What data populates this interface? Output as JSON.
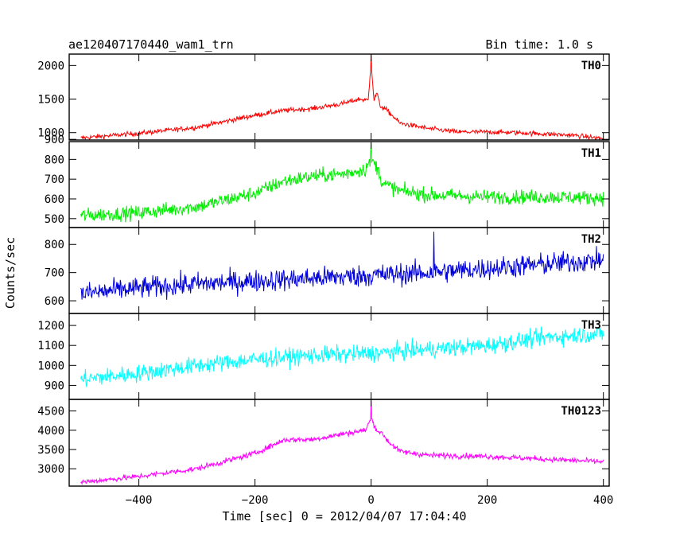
{
  "chart_data": {
    "type": "line",
    "title": "ae120407170440_wam1_trn",
    "subtitle": "Bin time: 1.0 s",
    "xlabel": "Time [sec] 0 = 2012/04/07 17:04:40",
    "ylabel": "Counts/sec",
    "xlim": [
      -520,
      410
    ],
    "x_ticks": [
      -400,
      -200,
      0,
      200,
      400
    ],
    "x_tick_labels": [
      "−400",
      "−200",
      "0",
      "200",
      "400"
    ],
    "grid": false,
    "panels": [
      {
        "name": "TH0",
        "color": "#ff0000",
        "ylim": [
          890,
          2170
        ],
        "y_ticks": [
          900,
          1000,
          1500,
          2000
        ],
        "y_tick_labels": [
          "900",
          "1000",
          "1500",
          "2000"
        ],
        "profile": [
          [
            -500,
            920
          ],
          [
            -400,
            990
          ],
          [
            -300,
            1080
          ],
          [
            -200,
            1260
          ],
          [
            -150,
            1330
          ],
          [
            -100,
            1360
          ],
          [
            -50,
            1430
          ],
          [
            -20,
            1500
          ],
          [
            -5,
            1480
          ],
          [
            0,
            2050
          ],
          [
            5,
            1480
          ],
          [
            10,
            1600
          ],
          [
            15,
            1400
          ],
          [
            25,
            1350
          ],
          [
            50,
            1140
          ],
          [
            100,
            1060
          ],
          [
            150,
            1010
          ],
          [
            200,
            1010
          ],
          [
            250,
            1000
          ],
          [
            300,
            980
          ],
          [
            350,
            960
          ],
          [
            400,
            910
          ]
        ],
        "noise": 35,
        "spikes": [
          [
            0,
            2170
          ]
        ]
      },
      {
        "name": "TH1",
        "color": "#00ee00",
        "ylim": [
          455,
          890
        ],
        "y_ticks": [
          500,
          600,
          700,
          800
        ],
        "y_tick_labels": [
          "500",
          "600",
          "700",
          "800"
        ],
        "profile": [
          [
            -500,
            515
          ],
          [
            -400,
            530
          ],
          [
            -300,
            560
          ],
          [
            -200,
            630
          ],
          [
            -150,
            690
          ],
          [
            -100,
            715
          ],
          [
            -50,
            725
          ],
          [
            -10,
            750
          ],
          [
            0,
            800
          ],
          [
            10,
            760
          ],
          [
            20,
            680
          ],
          [
            50,
            640
          ],
          [
            100,
            620
          ],
          [
            200,
            610
          ],
          [
            300,
            610
          ],
          [
            400,
            605
          ]
        ],
        "noise": 35,
        "spikes": [
          [
            0,
            880
          ]
        ]
      },
      {
        "name": "TH2",
        "color": "#0000dd",
        "ylim": [
          555,
          860
        ],
        "y_ticks": [
          600,
          700,
          800
        ],
        "y_tick_labels": [
          "600",
          "700",
          "800"
        ],
        "profile": [
          [
            -500,
            625
          ],
          [
            -400,
            645
          ],
          [
            -300,
            660
          ],
          [
            -200,
            670
          ],
          [
            -100,
            680
          ],
          [
            0,
            690
          ],
          [
            100,
            700
          ],
          [
            200,
            715
          ],
          [
            300,
            730
          ],
          [
            400,
            745
          ]
        ],
        "noise": 38,
        "spikes": [
          [
            108,
            845
          ]
        ]
      },
      {
        "name": "TH3",
        "color": "#00ffff",
        "ylim": [
          830,
          1260
        ],
        "y_ticks": [
          900,
          1000,
          1100,
          1200
        ],
        "y_tick_labels": [
          "900",
          "1000",
          "1100",
          "1200"
        ],
        "profile": [
          [
            -500,
            930
          ],
          [
            -400,
            960
          ],
          [
            -300,
            1000
          ],
          [
            -200,
            1030
          ],
          [
            -100,
            1050
          ],
          [
            0,
            1060
          ],
          [
            100,
            1080
          ],
          [
            200,
            1100
          ],
          [
            300,
            1140
          ],
          [
            400,
            1160
          ]
        ],
        "noise": 42,
        "spikes": []
      },
      {
        "name": "TH0123",
        "color": "#ff00ff",
        "ylim": [
          2550,
          4800
        ],
        "y_ticks": [
          3000,
          3500,
          4000,
          4500
        ],
        "y_tick_labels": [
          "3000",
          "3500",
          "4000",
          "4500"
        ],
        "profile": [
          [
            -500,
            2650
          ],
          [
            -400,
            2800
          ],
          [
            -300,
            3000
          ],
          [
            -200,
            3400
          ],
          [
            -150,
            3750
          ],
          [
            -100,
            3760
          ],
          [
            -50,
            3900
          ],
          [
            -10,
            4000
          ],
          [
            0,
            4300
          ],
          [
            10,
            4000
          ],
          [
            20,
            3900
          ],
          [
            30,
            3700
          ],
          [
            50,
            3450
          ],
          [
            100,
            3350
          ],
          [
            200,
            3320
          ],
          [
            300,
            3250
          ],
          [
            400,
            3180
          ]
        ],
        "noise": 70,
        "spikes": [
          [
            0,
            4760
          ]
        ]
      }
    ]
  }
}
